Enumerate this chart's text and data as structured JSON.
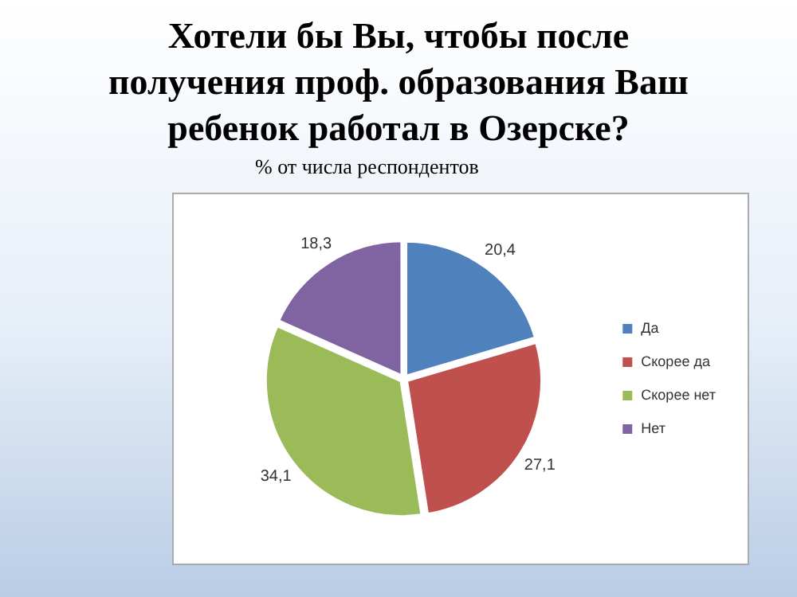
{
  "chart_data": {
    "type": "pie",
    "title": "Хотели бы Вы, чтобы после получения проф. образования Ваш ребенок работал в Озерске?",
    "subtitle": "% от числа респондентов",
    "categories": [
      "Да",
      "Скорее да",
      "Скорее нет",
      "Нет"
    ],
    "values": [
      20.4,
      27.1,
      34.1,
      18.3
    ],
    "colors": [
      "#4f81bd",
      "#c0504d",
      "#9bbb59",
      "#8064a2"
    ],
    "value_labels": [
      "20,4",
      "27,1",
      "34,1",
      "18,3"
    ],
    "legend": "right"
  }
}
